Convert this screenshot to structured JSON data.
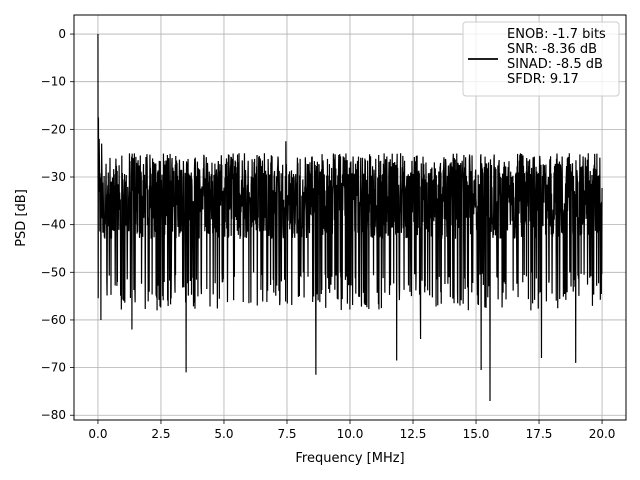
{
  "chart_data": {
    "type": "line",
    "title": "",
    "xlabel": "Frequency [MHz]",
    "ylabel": "PSD [dB]",
    "xlim": [
      -0.95,
      20.95
    ],
    "ylim": [
      -81,
      4
    ],
    "xticks": [
      0.0,
      2.5,
      5.0,
      7.5,
      10.0,
      12.5,
      15.0,
      17.5,
      20.0
    ],
    "xtick_labels": [
      "0.0",
      "2.5",
      "5.0",
      "7.5",
      "10.0",
      "12.5",
      "15.0",
      "17.5",
      "20.0"
    ],
    "yticks": [
      0,
      -10,
      -20,
      -30,
      -40,
      -50,
      -60,
      -70,
      -80
    ],
    "ytick_labels": [
      "0",
      "−10",
      "−20",
      "−30",
      "−40",
      "−50",
      "−60",
      "−70",
      "−80"
    ],
    "grid": true,
    "legend_position": "top-right",
    "legend_text": [
      "ENOB: -1.7 bits",
      "SNR: -8.36 dB",
      "SINAD: -8.5 dB",
      "SFDR: 9.17"
    ],
    "line_color": "#000000",
    "series": [
      {
        "x_range": [
          0.0,
          20.0
        ],
        "num_points": 2048,
        "noise_floor_db": -36,
        "typical_upper_db": -30,
        "typical_lower_db": -50,
        "peaks": [
          {
            "x": 0.0,
            "y": 0.0
          },
          {
            "x": 0.02,
            "y": -17.5
          },
          {
            "x": 0.05,
            "y": -22.0
          },
          {
            "x": 0.15,
            "y": -23.0
          },
          {
            "x": 7.45,
            "y": -22.5
          },
          {
            "x": 0.12,
            "y": -60.0
          },
          {
            "x": 1.35,
            "y": -62.0
          },
          {
            "x": 3.5,
            "y": -71.0
          },
          {
            "x": 8.65,
            "y": -71.5
          },
          {
            "x": 11.85,
            "y": -68.5
          },
          {
            "x": 12.8,
            "y": -64.0
          },
          {
            "x": 15.2,
            "y": -70.5
          },
          {
            "x": 15.55,
            "y": -77.0
          },
          {
            "x": 17.6,
            "y": -68.0
          },
          {
            "x": 18.95,
            "y": -69.0
          }
        ]
      }
    ]
  }
}
